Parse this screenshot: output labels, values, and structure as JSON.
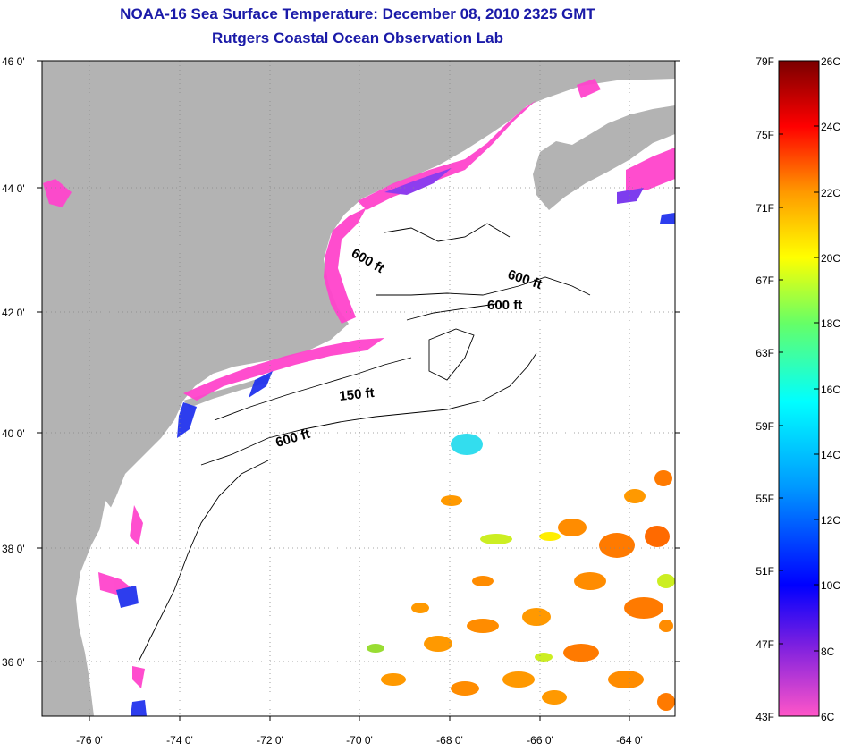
{
  "header": {
    "title": "NOAA-16 Sea Surface Temperature:  December 08, 2010 2325 GMT",
    "subtitle": "Rutgers Coastal Ocean Observation Lab"
  },
  "map": {
    "lat_ticks": [
      "46 0'",
      "44 0'",
      "42 0'",
      "40 0'",
      "38 0'",
      "36 0'"
    ],
    "lon_ticks": [
      "-76 0'",
      "-74 0'",
      "-72 0'",
      "-70 0'",
      "-68 0'",
      "-66 0'",
      "-64 0'"
    ],
    "contour_labels": [
      "600 ft",
      "600 ft",
      "600 ft",
      "150 ft",
      "600 ft"
    ],
    "colors": {
      "land": "#b3b3b3",
      "ocean_nodata": "#ffffff",
      "grid": "#888888"
    }
  },
  "colorbar": {
    "fahrenheit": [
      "79F",
      "75F",
      "71F",
      "67F",
      "63F",
      "59F",
      "55F",
      "51F",
      "47F",
      "43F"
    ],
    "celsius": [
      "26C",
      "24C",
      "22C",
      "20C",
      "18C",
      "16C",
      "14C",
      "12C",
      "10C",
      "8C",
      "6C"
    ],
    "gradient": [
      "#ff55c8",
      "#7a1fe0",
      "#0000ff",
      "#0099ff",
      "#00ffff",
      "#66ff66",
      "#ffff00",
      "#ff9900",
      "#ff0000",
      "#7a0000"
    ]
  }
}
